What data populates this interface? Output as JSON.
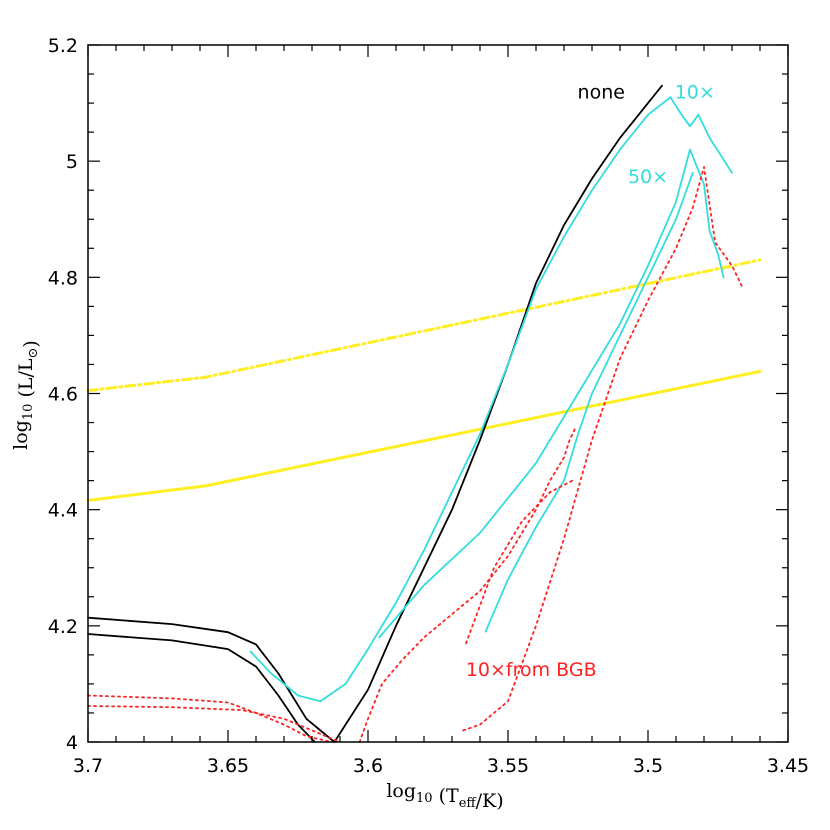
{
  "chart_data": {
    "type": "line",
    "xlabel": "log₁₀ (T_eff/K)",
    "ylabel": "log₁₀ (L/L_⊙)",
    "xlim": [
      3.7,
      3.45
    ],
    "ylim": [
      4.0,
      5.2
    ],
    "x_ticks": [
      "3.7",
      "3.65",
      "3.6",
      "3.55",
      "3.5",
      "3.45"
    ],
    "y_ticks": [
      "4",
      "4.2",
      "4.4",
      "4.6",
      "4.8",
      "5",
      "5.2"
    ],
    "annotations": [
      {
        "text": "none",
        "x": 3.5167,
        "y": 5.108,
        "color": "#000000"
      },
      {
        "text": "10×",
        "x": 3.4833,
        "y": 5.108,
        "color": "#33dddd"
      },
      {
        "text": "50×",
        "x": 3.5,
        "y": 4.962,
        "color": "#33dddd"
      },
      {
        "text": "10×from BGB",
        "x": 3.5417,
        "y": 4.114,
        "color": "#ff2222"
      }
    ],
    "series": [
      {
        "color": "#ffee22",
        "style": "solid",
        "x": [
          3.7,
          3.658,
          3.46
        ],
        "y": [
          4.416,
          4.441,
          4.638
        ]
      },
      {
        "color": "#ffee22",
        "style": "dashdot",
        "x": [
          3.7,
          3.658,
          3.46
        ],
        "y": [
          4.605,
          4.628,
          4.83
        ]
      },
      {
        "color": "#000000",
        "style": "solid",
        "x": [
          3.7,
          3.67,
          3.65,
          3.64,
          3.632,
          3.622,
          3.612,
          3.6,
          3.59,
          3.58,
          3.57,
          3.56,
          3.55,
          3.54,
          3.53,
          3.52,
          3.51,
          3.5,
          3.495
        ],
        "y": [
          4.214,
          4.203,
          4.189,
          4.168,
          4.118,
          4.04,
          4.0,
          4.09,
          4.2,
          4.3,
          4.4,
          4.52,
          4.65,
          4.79,
          4.89,
          4.97,
          5.04,
          5.1,
          5.13
        ]
      },
      {
        "color": "#000000",
        "style": "solid",
        "x": [
          3.7,
          3.67,
          3.65,
          3.64,
          3.632,
          3.625,
          3.619
        ],
        "y": [
          4.186,
          4.175,
          4.16,
          4.13,
          4.08,
          4.03,
          4.0
        ]
      },
      {
        "color": "#33dddd",
        "style": "solid",
        "x": [
          3.642,
          3.635,
          3.625,
          3.617,
          3.608,
          3.6,
          3.59,
          3.58,
          3.57,
          3.56,
          3.55,
          3.54,
          3.53,
          3.52,
          3.51,
          3.5,
          3.492,
          3.488,
          3.485,
          3.482,
          3.478,
          3.47
        ],
        "y": [
          4.156,
          4.12,
          4.08,
          4.07,
          4.1,
          4.16,
          4.24,
          4.33,
          4.43,
          4.53,
          4.65,
          4.78,
          4.87,
          4.95,
          5.02,
          5.08,
          5.11,
          5.08,
          5.06,
          5.08,
          5.04,
          4.98
        ]
      },
      {
        "color": "#33dddd",
        "style": "solid",
        "x": [
          3.596,
          3.58,
          3.56,
          3.54,
          3.525,
          3.51,
          3.5,
          3.49,
          3.485,
          3.48,
          3.478,
          3.475,
          3.473
        ],
        "y": [
          4.18,
          4.27,
          4.36,
          4.48,
          4.6,
          4.72,
          4.82,
          4.93,
          5.02,
          4.96,
          4.88,
          4.84,
          4.8
        ]
      },
      {
        "color": "#33dddd",
        "style": "solid",
        "x": [
          3.558,
          3.55,
          3.54,
          3.53,
          3.525,
          3.52,
          3.51,
          3.5,
          3.49,
          3.484
        ],
        "y": [
          4.19,
          4.28,
          4.37,
          4.45,
          4.53,
          4.6,
          4.7,
          4.8,
          4.9,
          4.98
        ]
      },
      {
        "color": "#ff2222",
        "style": "dotted",
        "x": [
          3.7,
          3.67,
          3.65,
          3.64,
          3.63,
          3.622,
          3.613
        ],
        "y": [
          4.08,
          4.075,
          4.068,
          4.05,
          4.03,
          4.01,
          4.0
        ]
      },
      {
        "color": "#ff2222",
        "style": "dotted",
        "x": [
          3.7,
          3.67,
          3.645,
          3.63,
          3.62,
          3.61
        ],
        "y": [
          4.062,
          4.06,
          4.055,
          4.04,
          4.02,
          4.0
        ]
      },
      {
        "color": "#ff2222",
        "style": "dotted",
        "x": [
          3.603,
          3.6,
          3.595,
          3.588,
          3.58,
          3.57,
          3.56,
          3.55,
          3.54,
          3.535,
          3.53,
          3.528,
          3.526
        ],
        "y": [
          4.0,
          4.04,
          4.1,
          4.14,
          4.18,
          4.22,
          4.26,
          4.32,
          4.4,
          4.45,
          4.49,
          4.52,
          4.54
        ]
      },
      {
        "color": "#ff2222",
        "style": "dotted",
        "x": [
          3.566,
          3.56,
          3.55,
          3.54,
          3.53,
          3.52,
          3.51,
          3.5,
          3.49,
          3.484,
          3.48,
          3.476,
          3.47,
          3.466
        ],
        "y": [
          4.02,
          4.03,
          4.07,
          4.2,
          4.35,
          4.52,
          4.66,
          4.76,
          4.85,
          4.92,
          4.99,
          4.86,
          4.82,
          4.78
        ]
      },
      {
        "color": "#ff2222",
        "style": "dotted",
        "x": [
          3.565,
          3.555,
          3.545,
          3.535,
          3.527
        ],
        "y": [
          4.17,
          4.3,
          4.38,
          4.43,
          4.45
        ]
      }
    ]
  }
}
